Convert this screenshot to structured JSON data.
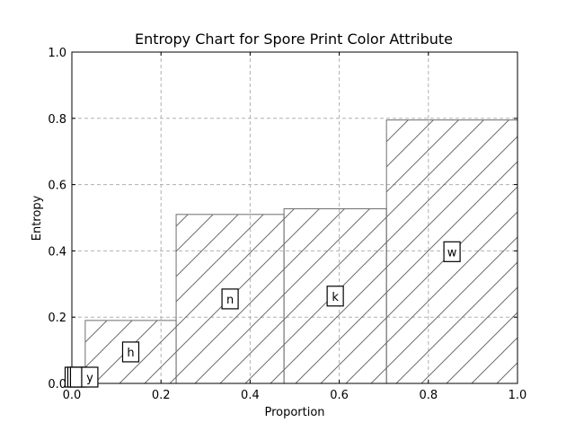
{
  "chart_data": {
    "type": "bar",
    "title": "Entropy Chart for Spore Print Color Attribute",
    "xlabel": "Proportion",
    "ylabel": "Entropy",
    "xlim": [
      0.0,
      1.0
    ],
    "ylim": [
      0.0,
      1.0
    ],
    "xticks": [
      "0.0",
      "0.2",
      "0.4",
      "0.6",
      "0.8",
      "1.0"
    ],
    "yticks": [
      "0.0",
      "0.2",
      "0.4",
      "0.6",
      "0.8",
      "1.0"
    ],
    "grid": true,
    "bars": [
      {
        "label": "",
        "x_start": 0.0,
        "x_end": 0.006,
        "entropy": 0.0
      },
      {
        "label": "",
        "x_start": 0.006,
        "x_end": 0.012,
        "entropy": 0.0
      },
      {
        "label": "",
        "x_start": 0.012,
        "x_end": 0.018,
        "entropy": 0.0
      },
      {
        "label": "y",
        "x_start": 0.018,
        "x_end": 0.03,
        "entropy": 0.0
      },
      {
        "label": "h",
        "x_start": 0.03,
        "x_end": 0.234,
        "entropy": 0.19
      },
      {
        "label": "n",
        "x_start": 0.234,
        "x_end": 0.476,
        "entropy": 0.51
      },
      {
        "label": "k",
        "x_start": 0.476,
        "x_end": 0.706,
        "entropy": 0.527
      },
      {
        "label": "w",
        "x_start": 0.706,
        "x_end": 1.0,
        "entropy": 0.795
      }
    ]
  }
}
